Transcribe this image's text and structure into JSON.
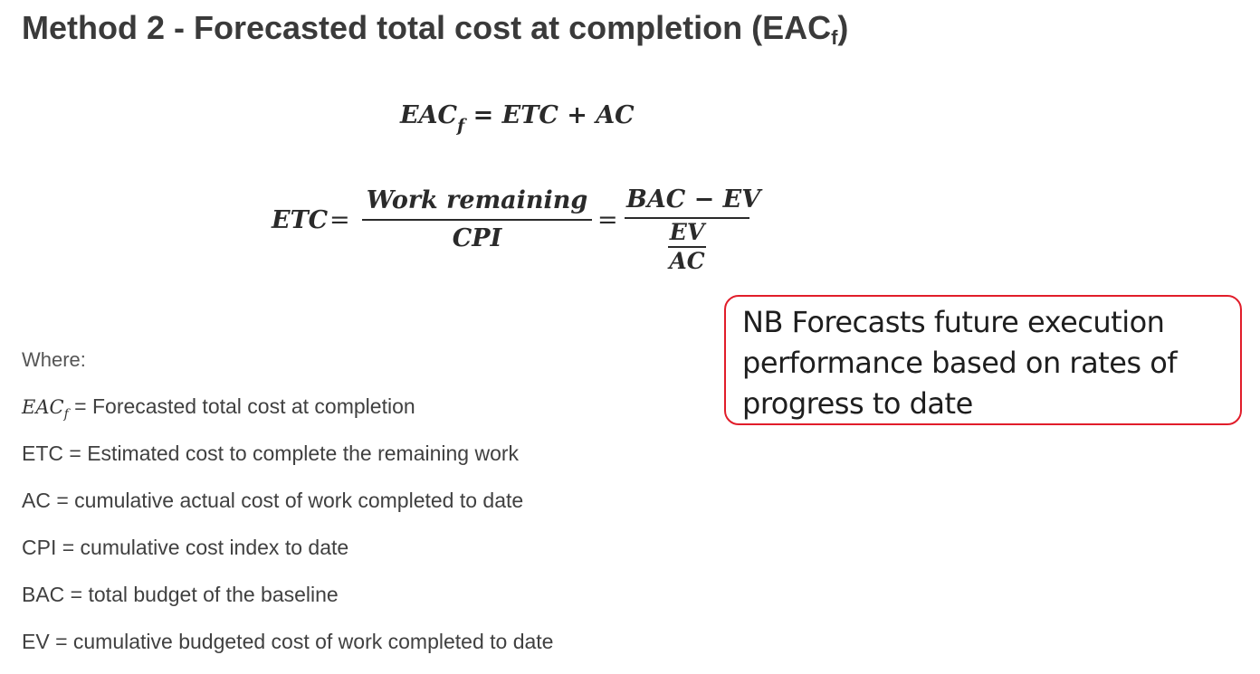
{
  "heading": {
    "text": "Method 2 - Forecasted total cost at completion (EAC",
    "subscript": "f",
    "close": ")"
  },
  "formula1": {
    "lhs": "EAC",
    "lhs_sub": "f",
    "rhs": " = ETC + AC"
  },
  "formula2": {
    "lhs": "ETC",
    "eq": "=",
    "frac1_num": "Work remaining",
    "frac1_den": "CPI",
    "eq2": "=",
    "frac2_num": "BAC − EV",
    "frac2_den_num": "EV",
    "frac2_den_den": "AC"
  },
  "where_label": "Where:",
  "definitions": [
    {
      "symbol": "EAC",
      "symbol_sub": "f",
      "text": " = Forecasted total cost at completion"
    },
    {
      "symbol": "",
      "symbol_sub": "",
      "text": "ETC = Estimated cost to complete the remaining work"
    },
    {
      "symbol": "",
      "symbol_sub": "",
      "text": "AC = cumulative actual cost of work completed to date"
    },
    {
      "symbol": "",
      "symbol_sub": "",
      "text": "CPI = cumulative cost index to date"
    },
    {
      "symbol": "",
      "symbol_sub": "",
      "text": "BAC = total budget of the baseline"
    },
    {
      "symbol": "",
      "symbol_sub": "",
      "text": "EV = cumulative budgeted cost of work completed to date"
    }
  ],
  "note": {
    "text": "NB Forecasts future execution performance based on rates of progress to date",
    "border_color": "#e11d2a"
  }
}
